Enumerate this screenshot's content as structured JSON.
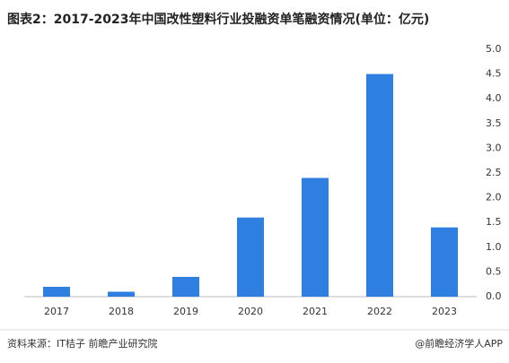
{
  "chart_data": {
    "type": "bar",
    "title": "图表2：2017-2023年中国改性塑料行业投融资单笔融资情况(单位：亿元)",
    "categories": [
      "2017",
      "2018",
      "2019",
      "2020",
      "2021",
      "2022",
      "2023"
    ],
    "values": [
      0.2,
      0.1,
      0.4,
      1.6,
      2.4,
      4.5,
      1.4
    ],
    "color": "#2f7fe0",
    "ylim": [
      0,
      5
    ],
    "yticks": [
      {
        "value": 0,
        "label": "0.0"
      },
      {
        "value": 0.5,
        "label": "0.5"
      },
      {
        "value": 1,
        "label": "1.0"
      },
      {
        "value": 1.5,
        "label": "1.5"
      },
      {
        "value": 2,
        "label": "2.0"
      },
      {
        "value": 2.5,
        "label": "2.5"
      },
      {
        "value": 3,
        "label": "3.0"
      },
      {
        "value": 3.5,
        "label": "3.5"
      },
      {
        "value": 4,
        "label": "4.0"
      },
      {
        "value": 4.5,
        "label": "4.5"
      },
      {
        "value": 5,
        "label": "5.0"
      }
    ],
    "grid": false,
    "axis_side": "right"
  },
  "footer": {
    "source": "资料来源：IT桔子 前瞻产业研究院",
    "brand": "@前瞻经济学人APP"
  }
}
